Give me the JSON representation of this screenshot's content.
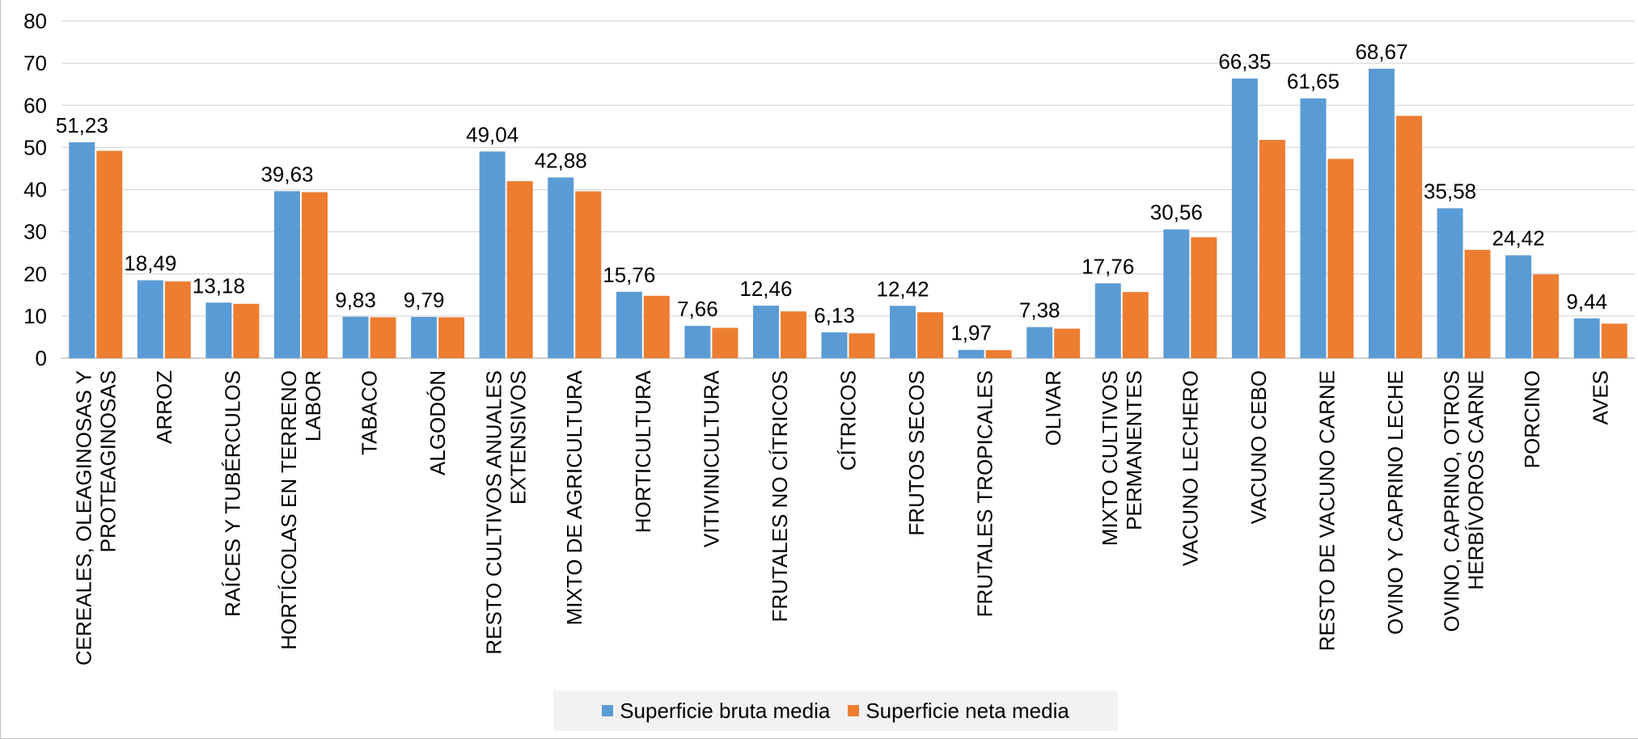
{
  "chart_data": {
    "type": "bar",
    "categories": [
      [
        "CEREALES, OLEAGINOSAS Y",
        "PROTEAGINOSAS"
      ],
      [
        "ARROZ"
      ],
      [
        "RAÍCES Y TUBÉRCULOS"
      ],
      [
        "HORTÍCOLAS EN TERRENO",
        "LABOR"
      ],
      [
        "TABACO"
      ],
      [
        "ALGODÓN"
      ],
      [
        "RESTO CULTIVOS ANUALES",
        "EXTENSIVOS"
      ],
      [
        "MIXTO DE AGRICULTURA"
      ],
      [
        "HORTICULTURA"
      ],
      [
        "VITIVINICULTURA"
      ],
      [
        "FRUTALES NO CÍTRICOS"
      ],
      [
        "CÍTRICOS"
      ],
      [
        "FRUTOS SECOS"
      ],
      [
        "FRUTALES TROPICALES"
      ],
      [
        "OLIVAR"
      ],
      [
        "MIXTO CULTIVOS",
        "PERMANENTES"
      ],
      [
        "VACUNO LECHERO"
      ],
      [
        "VACUNO CEBO"
      ],
      [
        "RESTO DE VACUNO CARNE"
      ],
      [
        "OVINO Y CAPRINO LECHE"
      ],
      [
        "OVINO, CAPRINO, OTROS",
        "HERBÍVOROS CARNE"
      ],
      [
        "PORCINO"
      ],
      [
        "AVES"
      ]
    ],
    "series": [
      {
        "name": "Superficie bruta media",
        "color": "#5b9bd5",
        "values": [
          51.23,
          18.49,
          13.18,
          39.63,
          9.83,
          9.79,
          49.04,
          42.88,
          15.76,
          7.66,
          12.46,
          6.13,
          12.42,
          1.97,
          7.38,
          17.76,
          30.56,
          66.35,
          61.65,
          68.67,
          35.58,
          24.42,
          9.44
        ],
        "labels": [
          "51,23",
          "18,49",
          "13,18",
          "39,63",
          "9,83",
          "9,79",
          "49,04",
          "42,88",
          "15,76",
          "7,66",
          "12,46",
          "6,13",
          "12,42",
          "1,97",
          "7,38",
          "17,76",
          "30,56",
          "66,35",
          "61,65",
          "68,67",
          "35,58",
          "24,42",
          "9,44"
        ]
      },
      {
        "name": "Superficie neta media",
        "color": "#ed7d31",
        "values": [
          49.2,
          18.2,
          12.9,
          39.4,
          9.7,
          9.7,
          42.0,
          39.6,
          14.8,
          7.2,
          11.1,
          5.9,
          10.9,
          1.9,
          7.0,
          15.7,
          28.7,
          51.8,
          47.3,
          57.5,
          25.7,
          19.9,
          8.2
        ]
      }
    ],
    "yticks": [
      0,
      10,
      20,
      30,
      40,
      50,
      60,
      70,
      80
    ],
    "ylim": [
      0,
      80
    ],
    "grid": true,
    "legend_position": "bottom",
    "title": "",
    "xlabel": "",
    "ylabel": ""
  }
}
